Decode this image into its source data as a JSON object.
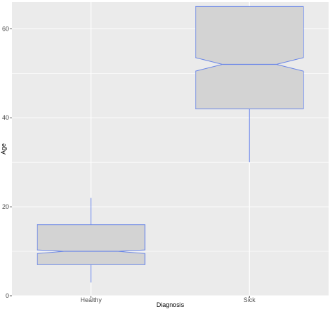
{
  "chart_data": {
    "type": "boxplot",
    "notched": true,
    "xlabel": "Diagnosis",
    "ylabel": "Age",
    "ylim": [
      0,
      66
    ],
    "y_ticks": [
      0,
      20,
      40,
      60
    ],
    "grid": true,
    "legend": "none",
    "categories": [
      "Healthy",
      "Sick"
    ],
    "boxes": [
      {
        "category": "Healthy",
        "min": 3,
        "q1": 7,
        "median": 10,
        "q3": 16,
        "max": 22,
        "notch_low": 9.5,
        "notch_high": 10.3
      },
      {
        "category": "Sick",
        "min": 30,
        "q1": 42,
        "median": 52,
        "q3": 65,
        "max": 65,
        "notch_low": 50.5,
        "notch_high": 53.5
      }
    ],
    "colors": {
      "panel_background": "#ebebeb",
      "grid_major": "#ffffff",
      "box_fill": "#d3d3d3",
      "box_outline": "#6a86e8"
    }
  }
}
